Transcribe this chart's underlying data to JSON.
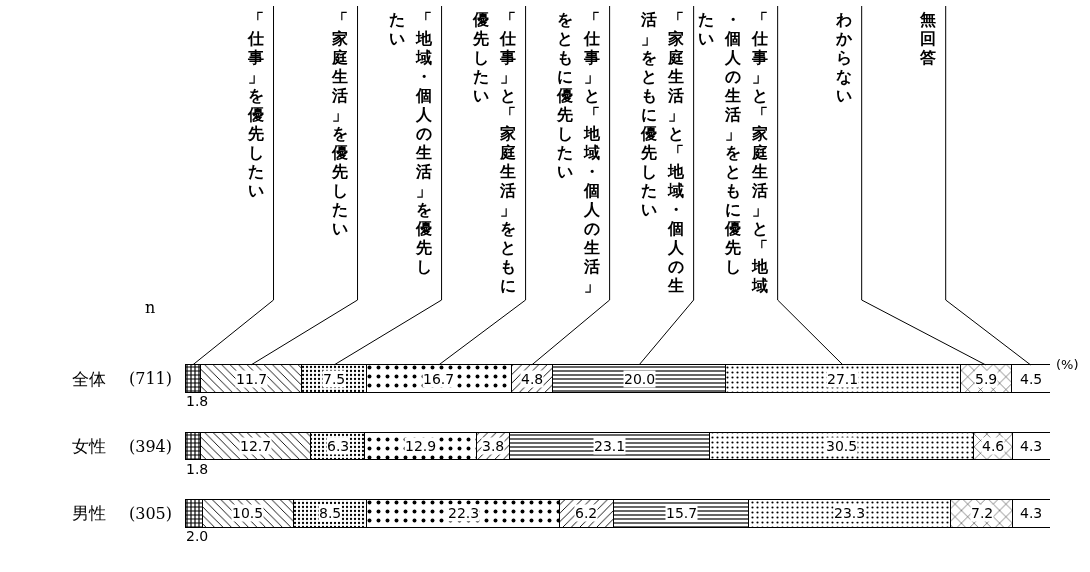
{
  "chart_data": {
    "type": "bar",
    "orientation": "horizontal",
    "stacked": true,
    "categories": [
      "全体",
      "女性",
      "男性"
    ],
    "xlim": [
      0,
      100
    ],
    "tick_labels": "y",
    "series": [
      {
        "name": "「仕事」を優先したい",
        "color": "#000000",
        "values": [
          1.8,
          1.8,
          2.0
        ],
        "value_labels": [
          "1.8",
          "1.8",
          "2.0"
        ]
      },
      {
        "name": "「家庭生活」を優先したい",
        "color": "#000000",
        "values": [
          11.7,
          12.7,
          10.5
        ],
        "value_labels": [
          "11.7",
          "12.7",
          "10.5"
        ]
      },
      {
        "name": "「地域・個人の生活」を優先したい",
        "color": "#000000",
        "values": [
          7.5,
          6.3,
          8.5
        ],
        "value_labels": [
          "7.5",
          "6.3",
          "8.5"
        ]
      },
      {
        "name": "「仕事」と「家庭生活」をともに優先したい",
        "color": "#000000",
        "values": [
          16.7,
          12.9,
          22.3
        ],
        "value_labels": [
          "16.7",
          "12.9",
          "22.3"
        ]
      },
      {
        "name": "「仕事」と「地域・個人の生活」をともに優先したい",
        "color": "#000000",
        "values": [
          4.8,
          3.8,
          6.2
        ],
        "value_labels": [
          "4.8",
          "3.8",
          "6.2"
        ]
      },
      {
        "name": "「家庭生活」と「地域・個人の生活」をともに優先したい",
        "color": "#000000",
        "values": [
          20.0,
          23.1,
          15.7
        ],
        "value_labels": [
          "20.0",
          "23.1",
          "15.7"
        ]
      },
      {
        "name": "「仕事」と「家庭生活」と「地域・個人の生活」をともに優先したい",
        "color": "#000000",
        "values": [
          27.1,
          30.5,
          23.3
        ],
        "value_labels": [
          "27.1",
          "30.5",
          "23.3"
        ]
      },
      {
        "name": "わからない",
        "color": "#000000",
        "values": [
          5.9,
          4.6,
          7.2
        ],
        "value_labels": [
          "5.9",
          "4.6",
          "7.2"
        ]
      },
      {
        "name": "無回答",
        "color": "#ffffff",
        "values": [
          4.5,
          4.3,
          4.3
        ],
        "value_labels": [
          "4.5",
          "4.3",
          "4.3"
        ]
      }
    ],
    "annotations": [
      "n",
      "(711)",
      "(394)",
      "(305)",
      "(%)"
    ]
  }
}
